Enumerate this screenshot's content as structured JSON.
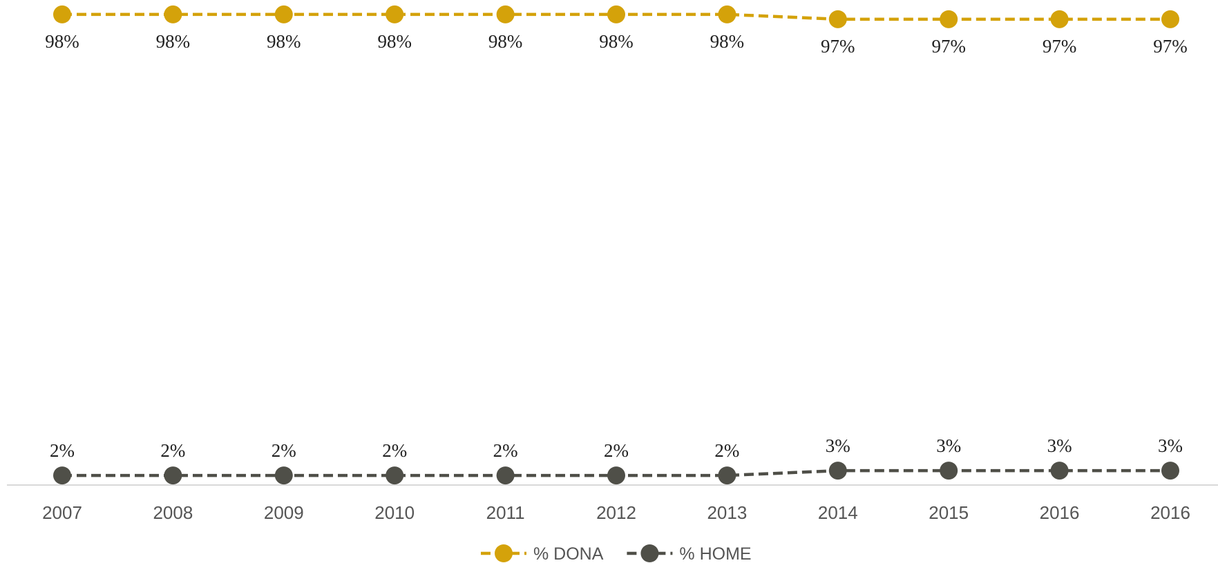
{
  "chart_data": {
    "type": "line",
    "categories": [
      "2007",
      "2008",
      "2009",
      "2010",
      "2011",
      "2012",
      "2013",
      "2014",
      "2015",
      "2016",
      "2016"
    ],
    "series": [
      {
        "name": "% DONA",
        "color": "#d4a20a",
        "values": [
          98,
          98,
          98,
          98,
          98,
          98,
          98,
          97,
          97,
          97,
          97
        ],
        "value_labels": [
          "98%",
          "98%",
          "98%",
          "98%",
          "98%",
          "98%",
          "98%",
          "97%",
          "97%",
          "97%",
          "97%"
        ]
      },
      {
        "name": "% HOME",
        "color": "#4f4f48",
        "values": [
          2,
          2,
          2,
          2,
          2,
          2,
          2,
          3,
          3,
          3,
          3
        ],
        "value_labels": [
          "2%",
          "2%",
          "2%",
          "2%",
          "2%",
          "2%",
          "2%",
          "3%",
          "3%",
          "3%",
          "3%"
        ]
      }
    ],
    "ylim": [
      0,
      101
    ],
    "legend": "bottom",
    "grid": false
  }
}
